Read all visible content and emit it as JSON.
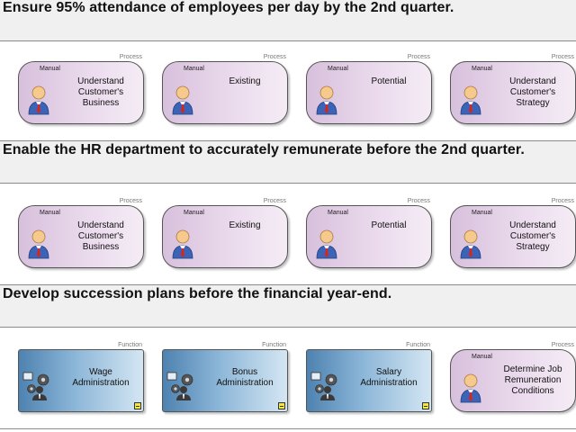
{
  "goals": [
    {
      "title": "Ensure 95% attendance of employees per day by the 2nd quarter.",
      "items": [
        {
          "type": "Process",
          "manual": "Manual",
          "lines": [
            "Understand",
            "Customer's",
            "Business"
          ]
        },
        {
          "type": "Process",
          "manual": "Manual",
          "lines": [
            "Existing"
          ]
        },
        {
          "type": "Process",
          "manual": "Manual",
          "lines": [
            "Potential"
          ]
        },
        {
          "type": "Process",
          "manual": "Manual",
          "lines": [
            "Understand",
            "Customer's",
            "Strategy"
          ]
        }
      ]
    },
    {
      "title": "Enable the HR department to accurately remunerate before the 2nd quarter.",
      "items": [
        {
          "type": "Process",
          "manual": "Manual",
          "lines": [
            "Understand",
            "Customer's",
            "Business"
          ]
        },
        {
          "type": "Process",
          "manual": "Manual",
          "lines": [
            "Existing"
          ]
        },
        {
          "type": "Process",
          "manual": "Manual",
          "lines": [
            "Potential"
          ]
        },
        {
          "type": "Process",
          "manual": "Manual",
          "lines": [
            "Understand",
            "Customer's",
            "Strategy"
          ]
        }
      ]
    },
    {
      "title": "Develop succession plans before the financial year-end.",
      "items": [
        {
          "type": "Function",
          "lines": [
            "Wage",
            "Administration"
          ]
        },
        {
          "type": "Function",
          "lines": [
            "Bonus",
            "Administration"
          ]
        },
        {
          "type": "Function",
          "lines": [
            "Salary",
            "Administration"
          ]
        },
        {
          "type": "Process",
          "manual": "Manual",
          "lines": [
            "Determine Job",
            "Remuneration",
            "Conditions"
          ]
        }
      ]
    }
  ],
  "colors": {
    "process_fill": "#e3d0e6",
    "function_fill": "#6d9dc6",
    "band_fill": "#f0f0f0",
    "marker": "#f5e642"
  },
  "icons": {
    "process": "person-icon",
    "function": "gear-person-icon",
    "marker": "minimize-icon"
  }
}
